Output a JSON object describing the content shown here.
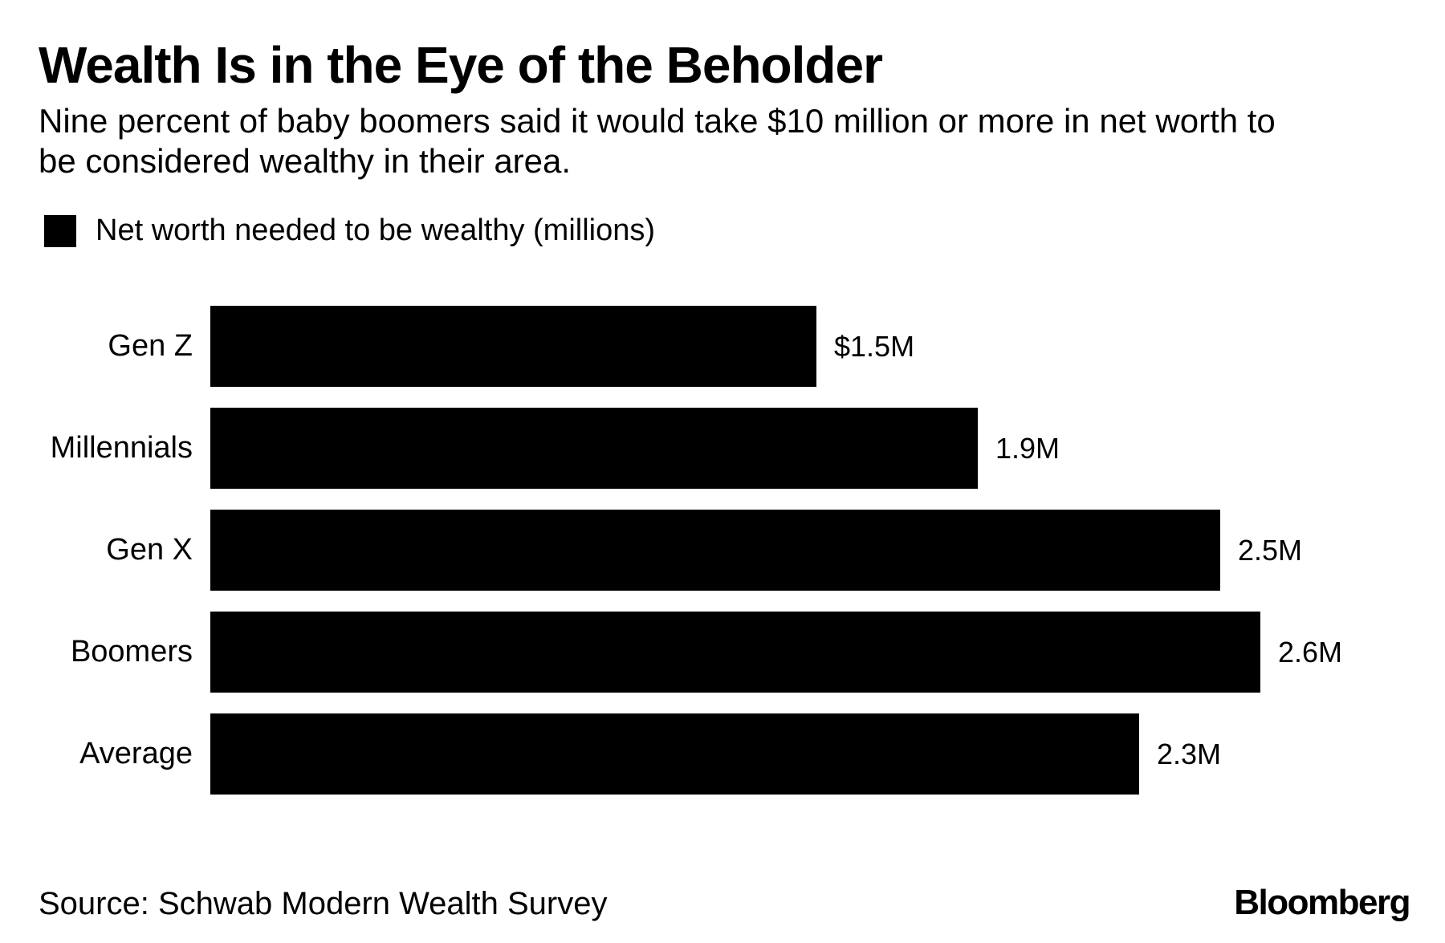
{
  "header": {
    "title": "Wealth Is in the Eye of the Beholder",
    "subtitle_lines": [
      "Nine percent of baby boomers said it would take $10 million or more in net worth to",
      "be considered wealthy in their area."
    ]
  },
  "legend": {
    "swatch_color": "#000000",
    "label": "Net worth needed to be wealthy (millions)"
  },
  "chart_data": {
    "type": "bar",
    "orientation": "horizontal",
    "title": "Net worth needed to be wealthy (millions)",
    "categories": [
      "Gen Z",
      "Millennials",
      "Gen X",
      "Boomers",
      "Average"
    ],
    "values": [
      1.5,
      1.9,
      2.5,
      2.6,
      2.3
    ],
    "value_labels": [
      "$1.5M",
      "1.9M",
      "2.5M",
      "2.6M",
      "2.3M"
    ],
    "unit": "millions of dollars",
    "xlabel": "",
    "ylabel": "",
    "xlim": [
      0,
      2.6
    ],
    "grid": false,
    "bar_color": "#000000",
    "background_color": "#ffffff",
    "legend_position": "top-left"
  },
  "footer": {
    "source": "Source: Schwab Modern Wealth Survey",
    "brand": "Bloomberg"
  }
}
